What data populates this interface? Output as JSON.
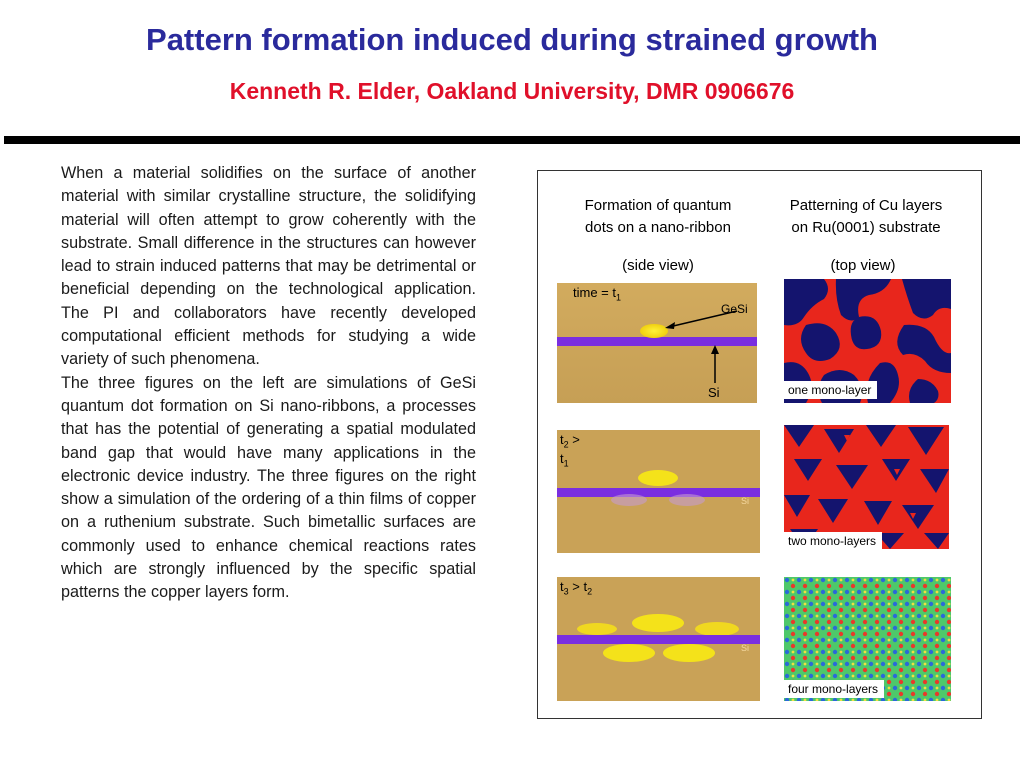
{
  "header": {
    "title": "Pattern formation induced during strained growth",
    "subtitle": "Kenneth R. Elder, Oakland University, DMR 0906676"
  },
  "text": {
    "paragraph1": "When a material solidifies on the surface of another material with similar crystalline structure, the solidifying material will often attempt to grow coherently with the substrate. Small difference in the structures can however lead to strain induced patterns that may be detrimental or beneficial depending on the technological application.  The PI and collaborators have recently developed computational efficient methods for studying a wide variety of such phenomena.",
    "paragraph2": "The three figures on the left are simulations of GeSi  quantum dot formation on Si nano-ribbons, a processes that has the potential of generating a spatial modulated band gap that would have many applications in the electronic device industry.  The three figures on the right show a simulation of the ordering of a thin films of copper on a ruthenium substrate.  Such bimetallic surfaces are commonly used to enhance chemical reactions rates which are strongly influenced by the specific spatial patterns the copper layers form."
  },
  "figure": {
    "left_caption_line1": "Formation of quantum",
    "left_caption_line2": "dots on a nano-ribbon",
    "left_view": "(side view)",
    "right_caption_line1": "Patterning of Cu layers",
    "right_caption_line2": "on Ru(0001) substrate",
    "right_view": "(top view)",
    "time1_label": "time = t",
    "time1_sub": "1",
    "gesi_label": "GeSi",
    "si_label": "Si",
    "t2_main": "t",
    "t2_sub": "2",
    "t2_rest": " >",
    "t2_line2": "t",
    "t2_line2_sub": "1",
    "t3_main": "t",
    "t3_sub": "3",
    "t3_mid": " > t",
    "t3_sub2": "2",
    "si_small_1": "Si",
    "si_small_2": "Si",
    "tag_one": "one  mono-layer",
    "tag_two": "two mono-layers",
    "tag_four": "four mono-layers"
  },
  "colors": {
    "title": "#2a2a9c",
    "subtitle": "#e0102a",
    "substrate_tan": "#c8a45c",
    "ribbon_purple": "#7a2ee0",
    "dot_yellow": "#f4e21a",
    "cu_red": "#e8261c",
    "ru_navy": "#14146e"
  }
}
